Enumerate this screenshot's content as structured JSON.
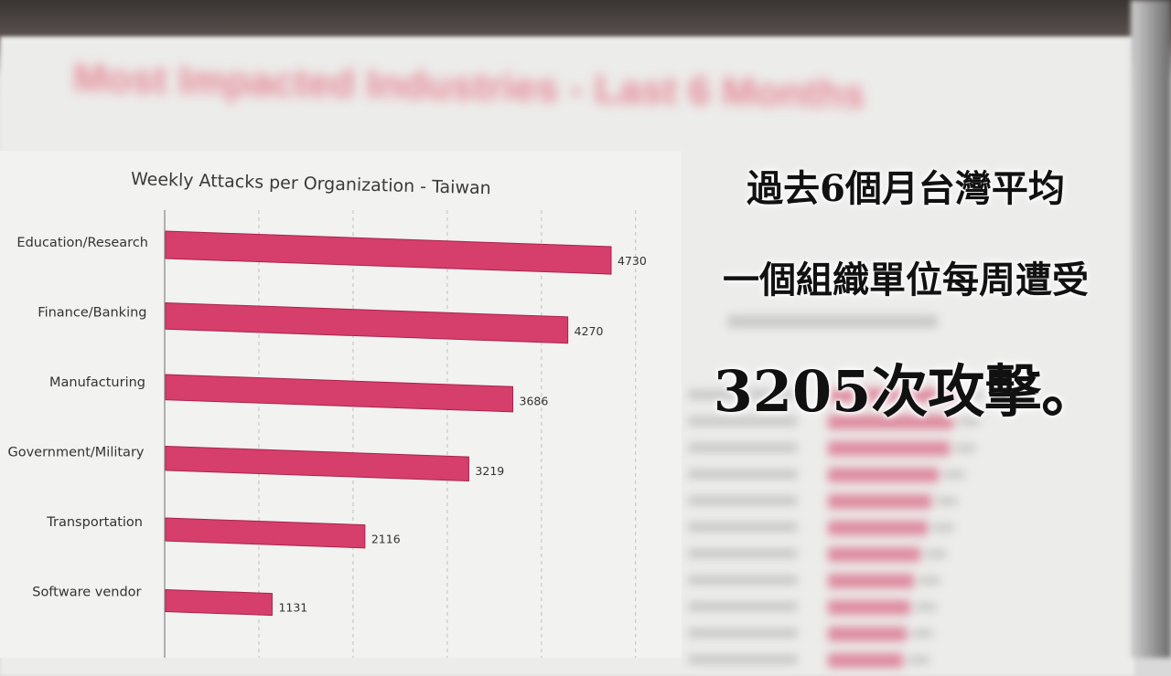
{
  "background": {
    "title": "Most Impacted Industries - Last 6 Months"
  },
  "caption": {
    "line1": "過去6個月台灣平均",
    "line2": "一個組織單位每周遭受",
    "line3": "3205次攻擊。"
  },
  "colors": {
    "bar": "#d63e6c",
    "bar_edge": "#a8244d",
    "title": "#e03a55"
  },
  "chart_data": {
    "type": "bar",
    "orientation": "horizontal",
    "title": "Weekly Attacks per Organization - Taiwan",
    "categories": [
      "Education/Research",
      "Finance/Banking",
      "Manufacturing",
      "Government/Military",
      "Transportation",
      "Software vendor"
    ],
    "values": [
      4730,
      4270,
      3686,
      3219,
      2116,
      1131
    ],
    "data_labels": [
      "4730",
      "4270",
      "3686",
      "3219",
      "2116",
      "1131"
    ],
    "xlim": [
      0,
      5000
    ],
    "grid": true
  }
}
